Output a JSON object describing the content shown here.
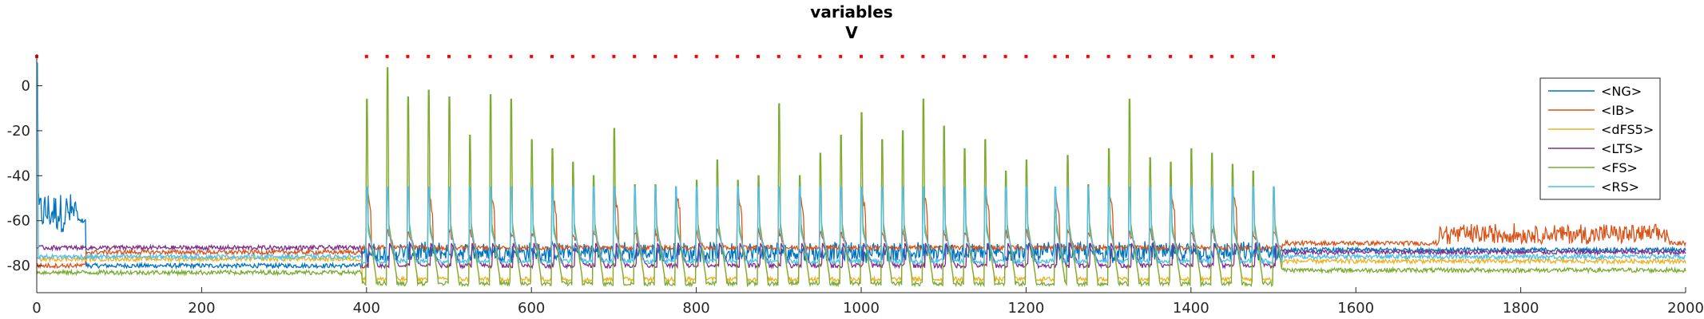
{
  "chart_data": {
    "type": "line",
    "title": "variables",
    "subtitle": "V",
    "xlabel": "",
    "ylabel": "",
    "xlim": [
      0,
      2000
    ],
    "ylim": [
      -92,
      14
    ],
    "xticks": [
      0,
      200,
      400,
      600,
      800,
      1000,
      1200,
      1400,
      1600,
      1800,
      2000
    ],
    "yticks": [
      0,
      -20,
      -40,
      -60,
      -80
    ],
    "grid": false,
    "legend_position": "top-right",
    "series": [
      {
        "name": "<NG>",
        "color": "#0072BD"
      },
      {
        "name": "<IB>",
        "color": "#D95319"
      },
      {
        "name": "<dFS5>",
        "color": "#EDB120"
      },
      {
        "name": "<LTS>",
        "color": "#7E2F8E"
      },
      {
        "name": "<FS>",
        "color": "#77AC30"
      },
      {
        "name": "<RS>",
        "color": "#4DBEEE"
      }
    ],
    "markers": {
      "color": "#FF0000",
      "y": 13,
      "x": [
        0,
        400,
        425,
        450,
        475,
        500,
        525,
        550,
        575,
        600,
        625,
        650,
        675,
        700,
        725,
        750,
        775,
        800,
        825,
        850,
        875,
        900,
        925,
        950,
        975,
        1000,
        1025,
        1050,
        1075,
        1100,
        1125,
        1150,
        1175,
        1200,
        1235,
        1250,
        1275,
        1300,
        1325,
        1350,
        1375,
        1400,
        1425,
        1450,
        1475,
        1500
      ]
    },
    "fs_spikes": {
      "x": [
        400,
        425,
        450,
        475,
        500,
        525,
        550,
        575,
        600,
        625,
        650,
        675,
        700,
        725,
        750,
        775,
        800,
        825,
        850,
        875,
        900,
        925,
        950,
        975,
        1000,
        1025,
        1050,
        1075,
        1100,
        1125,
        1150,
        1175,
        1200,
        1235,
        1250,
        1275,
        1300,
        1325,
        1350,
        1375,
        1400,
        1425,
        1450,
        1475,
        1500
      ],
      "peak": [
        -6,
        8,
        -5,
        -2,
        -5,
        -22,
        -4,
        -6,
        -24,
        -28,
        -34,
        -40,
        -19,
        -44,
        -44,
        -49,
        -42,
        -33,
        -42,
        -40,
        -8,
        -40,
        -30,
        -22,
        -12,
        -24,
        -20,
        -6,
        -18,
        -28,
        -24,
        -38,
        -33,
        -55,
        -31,
        -44,
        -28,
        -6,
        -32,
        -34,
        -28,
        -30,
        -35,
        -38,
        -45
      ]
    }
  }
}
